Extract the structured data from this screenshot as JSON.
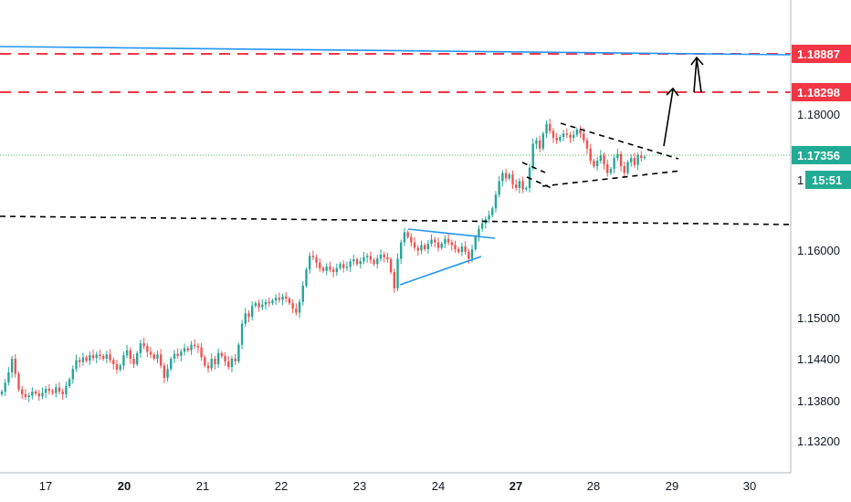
{
  "chart_data": {
    "type": "candlestick",
    "title": "",
    "xlabel": "",
    "ylabel": "",
    "x_ticks": [
      {
        "label": "17",
        "bold": false
      },
      {
        "label": "20",
        "bold": true
      },
      {
        "label": "21",
        "bold": false
      },
      {
        "label": "22",
        "bold": false
      },
      {
        "label": "23",
        "bold": false
      },
      {
        "label": "24",
        "bold": false
      },
      {
        "label": "27",
        "bold": true
      },
      {
        "label": "28",
        "bold": false
      },
      {
        "label": "29",
        "bold": false
      },
      {
        "label": "30",
        "bold": false
      }
    ],
    "y_ticks": [
      "1.18000",
      "1.16000",
      "1.15000",
      "1.14400",
      "1.13800",
      "1.13200"
    ],
    "price_labels": [
      {
        "value": "1.18887",
        "color": "#f23645"
      },
      {
        "value": "1.18298",
        "color": "#f23645"
      },
      {
        "value": "1.17356",
        "color": "#22ab94"
      },
      {
        "value": "15:51",
        "color": "#22ab94"
      }
    ],
    "partial_tick_label": "1",
    "colors": {
      "up": "#26a69a",
      "down": "#ef5350",
      "resistance": "#f23645",
      "trendline": "#2196f3",
      "current_price": "#4caf50",
      "annotation": "#000000"
    },
    "series": [
      {
        "name": "",
        "values": [
          1.1392,
          1.1405,
          1.142,
          1.144,
          1.1418,
          1.1395,
          1.1388,
          1.1384,
          1.1386,
          1.1392,
          1.1389,
          1.1385,
          1.139,
          1.1396,
          1.1393,
          1.139,
          1.1398,
          1.1392,
          1.1388,
          1.14,
          1.141,
          1.1425,
          1.1438,
          1.1435,
          1.1442,
          1.1437,
          1.1445,
          1.1441,
          1.1446,
          1.1444,
          1.144,
          1.1446,
          1.1438,
          1.1432,
          1.1424,
          1.143,
          1.1445,
          1.1452,
          1.144,
          1.1432,
          1.1448,
          1.1462,
          1.1458,
          1.145,
          1.1446,
          1.144,
          1.1446,
          1.143,
          1.1412,
          1.1425,
          1.144,
          1.1447,
          1.1444,
          1.145,
          1.1455,
          1.1452,
          1.146,
          1.1458,
          1.1456,
          1.1442,
          1.143,
          1.1426,
          1.144,
          1.1432,
          1.1448,
          1.1444,
          1.1436,
          1.1428,
          1.144,
          1.1436,
          1.146,
          1.149,
          1.1505,
          1.15,
          1.1516,
          1.152,
          1.1514,
          1.1518,
          1.1522,
          1.152,
          1.1524,
          1.1528,
          1.1525,
          1.153,
          1.1527,
          1.152,
          1.1512,
          1.1506,
          1.1522,
          1.1546,
          1.157,
          1.159,
          1.1588,
          1.158,
          1.1572,
          1.1568,
          1.1574,
          1.157,
          1.1566,
          1.1572,
          1.1578,
          1.1572,
          1.1574,
          1.1582,
          1.1585,
          1.1578,
          1.1582,
          1.1588,
          1.159,
          1.1584,
          1.1578,
          1.1586,
          1.1592,
          1.1588,
          1.1585,
          1.1566,
          1.1542,
          1.1586,
          1.161,
          1.1625,
          1.1618,
          1.161,
          1.1602,
          1.1598,
          1.1606,
          1.16,
          1.1608,
          1.1614,
          1.161,
          1.1602,
          1.1608,
          1.1615,
          1.161,
          1.1606,
          1.16,
          1.1596,
          1.1604,
          1.1596,
          1.1586,
          1.16,
          1.1618,
          1.163,
          1.1638,
          1.1644,
          1.165,
          1.166,
          1.168,
          1.17,
          1.1712,
          1.1704,
          1.171,
          1.1695,
          1.169,
          1.17,
          1.1688,
          1.169,
          1.172,
          1.1755,
          1.176,
          1.1748,
          1.177,
          1.1784,
          1.1774,
          1.1764,
          1.176,
          1.1765,
          1.177,
          1.1768,
          1.1764,
          1.1768,
          1.1776,
          1.177,
          1.176,
          1.1748,
          1.173,
          1.1722,
          1.173,
          1.1738,
          1.1725,
          1.1712,
          1.1718,
          1.1734,
          1.174,
          1.1722,
          1.1712,
          1.1728,
          1.1734,
          1.1724,
          1.1738,
          1.1734,
          1.1736
        ]
      }
    ],
    "x_range": [
      0,
      211
    ],
    "y_range_note": "log-like price scale, higher prices above"
  }
}
